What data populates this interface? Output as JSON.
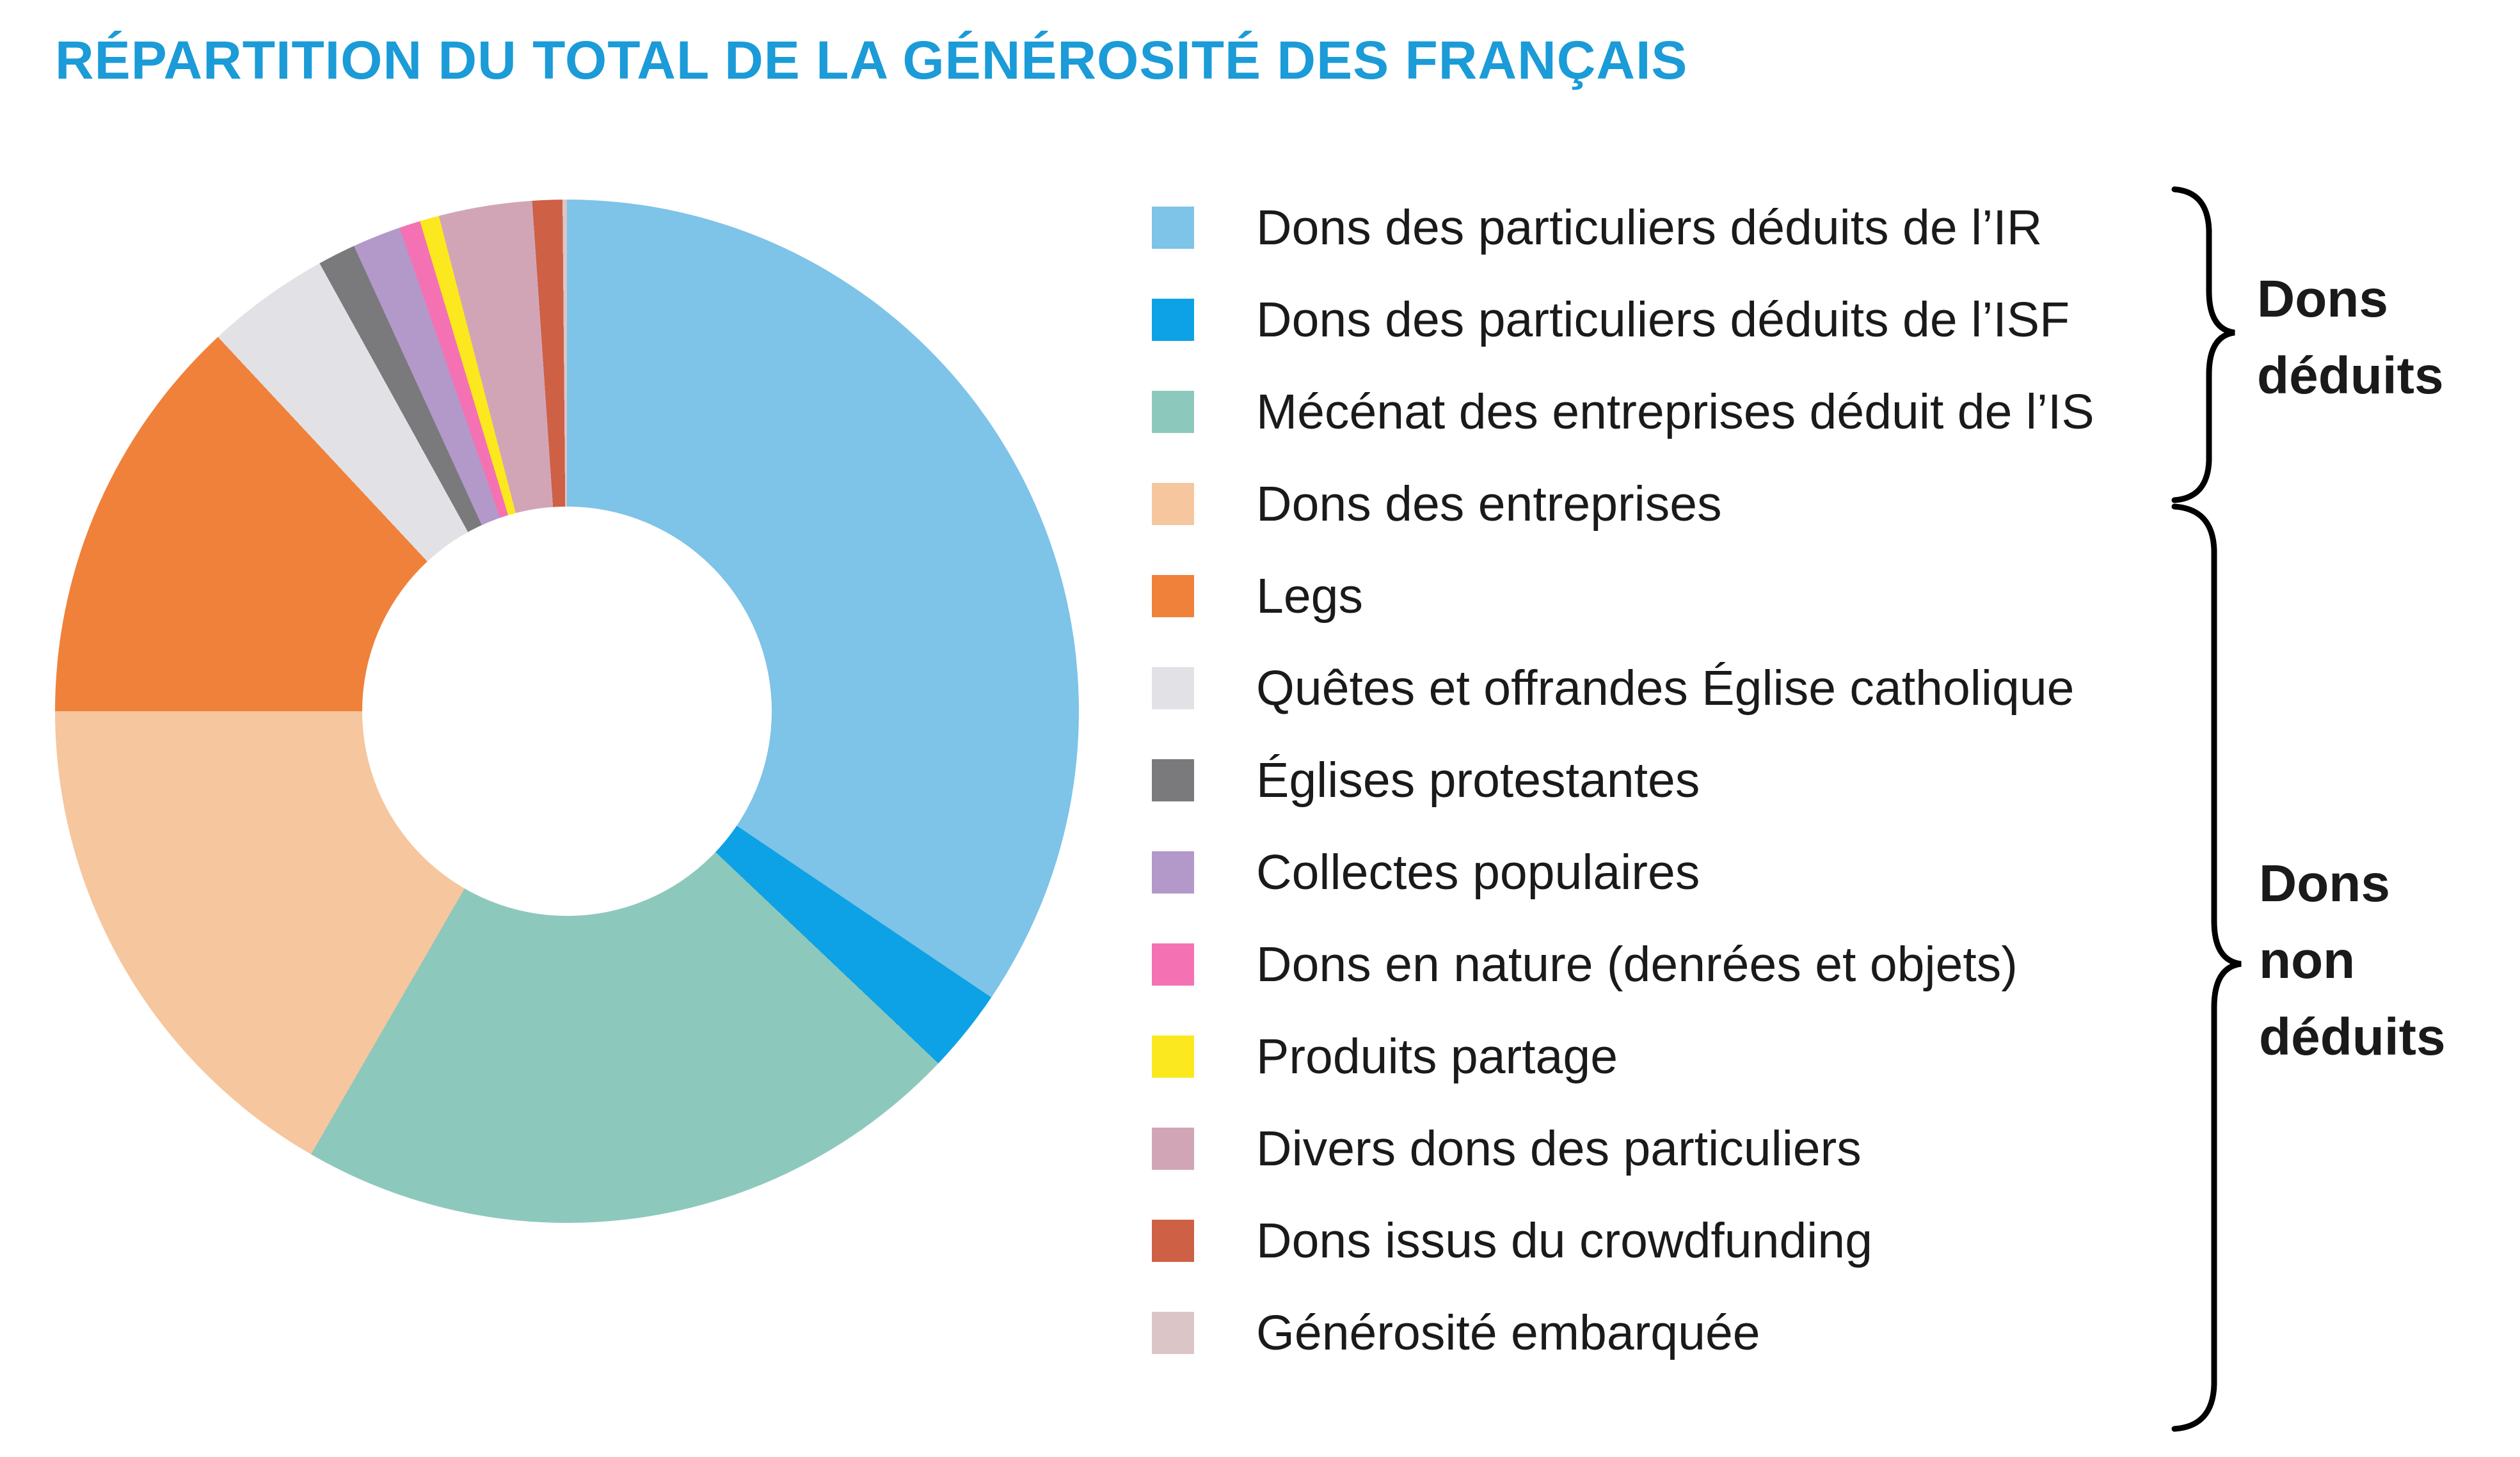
{
  "title": {
    "text": "RÉPARTITION DU TOTAL DE LA GÉNÉROSITÉ DES FRANÇAIS",
    "color": "#1B9BD7"
  },
  "chart_data": {
    "type": "pie",
    "style": "donut",
    "title": "RÉPARTITION DU TOTAL DE LA GÉNÉROSITÉ DES FRANÇAIS",
    "inner_radius_ratio": 0.4,
    "legend_position": "right",
    "start_angle_deg": 0,
    "direction": "clockwise",
    "note": "no numeric labels printed on chart; percentages estimated from slice angles",
    "segments": [
      {
        "label": "Dons des particuliers déduits de l’IR",
        "color": "#7EC3E8",
        "angle_deg": 124.0,
        "value_pct_est": 34.4,
        "group": "Dons déduits"
      },
      {
        "label": "Dons des particuliers déduits de l’ISF",
        "color": "#0DA2E5",
        "angle_deg": 9.5,
        "value_pct_est": 2.6,
        "group": "Dons déduits"
      },
      {
        "label": "Mécénat des entreprises déduit de l’IS",
        "color": "#8DC8BD",
        "angle_deg": 76.5,
        "value_pct_est": 21.3,
        "group": "Dons déduits"
      },
      {
        "label": "Dons des entreprises",
        "color": "#F6C69E",
        "angle_deg": 60.0,
        "value_pct_est": 16.7,
        "group": "Dons non déduits"
      },
      {
        "label": "Legs",
        "color": "#F0813A",
        "angle_deg": 47.0,
        "value_pct_est": 13.1,
        "group": "Dons non déduits"
      },
      {
        "label": "Quêtes et offrandes Église catholique",
        "color": "#E2E2E6",
        "angle_deg": 14.1,
        "value_pct_est": 3.9,
        "group": "Dons non déduits"
      },
      {
        "label": "Églises protestantes",
        "color": "#7A797C",
        "angle_deg": 4.3,
        "value_pct_est": 1.2,
        "group": "Dons non déduits"
      },
      {
        "label": "Collectes populaires",
        "color": "#B299C9",
        "angle_deg": 5.5,
        "value_pct_est": 1.5,
        "group": "Dons non déduits"
      },
      {
        "label": "Dons en nature (denrées et objets)",
        "color": "#F472B3",
        "angle_deg": 2.4,
        "value_pct_est": 0.7,
        "group": "Dons non déduits"
      },
      {
        "label": "Produits partage",
        "color": "#FCE81E",
        "angle_deg": 2.2,
        "value_pct_est": 0.6,
        "group": "Dons non déduits"
      },
      {
        "label": "Divers dons des particuliers",
        "color": "#D2A5B6",
        "angle_deg": 10.6,
        "value_pct_est": 2.9,
        "group": "Dons non déduits"
      },
      {
        "label": "Dons issus du crowdfunding",
        "color": "#CD6045",
        "angle_deg": 3.4,
        "value_pct_est": 0.9,
        "group": "Dons non déduits"
      },
      {
        "label": "Générosité embarquée",
        "color": "#DCC5C7",
        "angle_deg": 0.5,
        "value_pct_est": 0.1,
        "group": "Dons non déduits"
      }
    ]
  },
  "annotations": {
    "deducted_label": "Dons\ndéduits",
    "non_deducted_label": "Dons\nnon\ndéduits"
  }
}
